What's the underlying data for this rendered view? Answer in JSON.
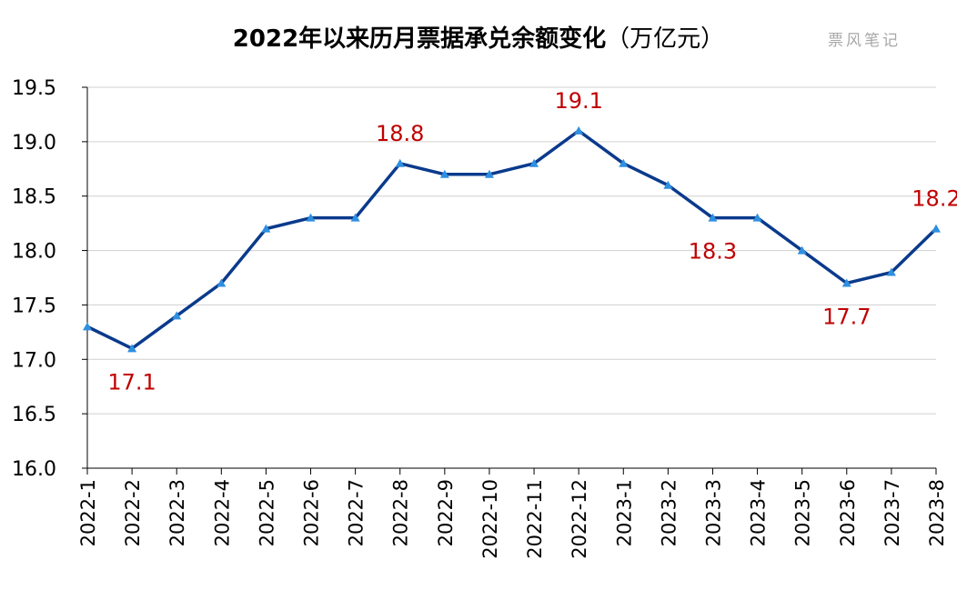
{
  "title": "2022年以来历月票据承兑余额变化",
  "unit": "（万亿元）",
  "watermark": "票风笔记",
  "colors": {
    "line": "#0a3a8c",
    "marker": "#2f8fe0",
    "annotation": "#c00000",
    "grid": "#d0d0d0",
    "axis": "#000000"
  },
  "chart_data": {
    "type": "line",
    "title": "2022年以来历月票据承兑余额变化（万亿元）",
    "xlabel": "",
    "ylabel": "",
    "categories": [
      "2022-1",
      "2022-2",
      "2022-3",
      "2022-4",
      "2022-5",
      "2022-6",
      "2022-7",
      "2022-8",
      "2022-9",
      "2022-10",
      "2022-11",
      "2022-12",
      "2023-1",
      "2023-2",
      "2023-3",
      "2023-4",
      "2023-5",
      "2023-6",
      "2023-7",
      "2023-8"
    ],
    "values": [
      17.3,
      17.1,
      17.4,
      17.7,
      18.2,
      18.3,
      18.3,
      18.8,
      18.7,
      18.7,
      18.8,
      19.1,
      18.8,
      18.6,
      18.3,
      18.3,
      18.0,
      17.7,
      17.8,
      18.2
    ],
    "ylim": [
      16.0,
      19.5
    ],
    "yticks": [
      "16.0",
      "16.5",
      "17.0",
      "17.5",
      "18.0",
      "18.5",
      "19.0",
      "19.5"
    ],
    "grid": true,
    "legend": "none",
    "annotations": [
      {
        "category": "2022-2",
        "label": "17.1",
        "position": "below"
      },
      {
        "category": "2022-8",
        "label": "18.8",
        "position": "above"
      },
      {
        "category": "2022-12",
        "label": "19.1",
        "position": "above"
      },
      {
        "category": "2023-3",
        "label": "18.3",
        "position": "below"
      },
      {
        "category": "2023-6",
        "label": "17.7",
        "position": "below"
      },
      {
        "category": "2023-8",
        "label": "18.2",
        "position": "above"
      }
    ]
  }
}
